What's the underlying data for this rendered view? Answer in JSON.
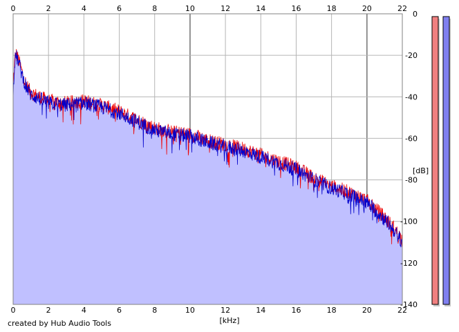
{
  "chart_data": {
    "type": "area",
    "title": "",
    "xlabel": "[kHz]",
    "ylabel": "[dB]",
    "xlim": [
      0,
      22
    ],
    "ylim": [
      -140,
      0
    ],
    "x_ticks": [
      "0",
      "2",
      "4",
      "6",
      "8",
      "10",
      "12",
      "14",
      "16",
      "18",
      "20",
      "22"
    ],
    "y_ticks": [
      "0",
      "-20",
      "-40",
      "-60",
      "-80",
      "-100",
      "-120",
      "-140"
    ],
    "grid": true,
    "x_tick_positions": "top-and-bottom",
    "y_tick_positions": "right",
    "colors": {
      "fill": "#c0c0ff",
      "channel_1_line": "#ee0000",
      "channel_2_line": "#0000cc",
      "grid": "#b4b4b4",
      "grid_major": "#7a7a7a",
      "level_meter_1": "#f08080",
      "level_meter_2": "#8080f0"
    },
    "series": [
      {
        "x": [
          0,
          0.05,
          0.1,
          0.15,
          0.2,
          0.3,
          0.4,
          0.6,
          0.8,
          1,
          1.5,
          2,
          3,
          4,
          5,
          6,
          7,
          8,
          9,
          10,
          11,
          12,
          13,
          14,
          15,
          16,
          17,
          18,
          19,
          20,
          20.5,
          21,
          21.5,
          22
        ],
        "values": [
          -36,
          -28,
          -22,
          -19,
          -20,
          -22,
          -25,
          -31,
          -35,
          -38,
          -40,
          -42,
          -43,
          -42,
          -44,
          -47,
          -51,
          -55,
          -57,
          -58,
          -61,
          -63,
          -65,
          -68,
          -71,
          -74,
          -79,
          -83,
          -86,
          -90,
          -94,
          -98,
          -103,
          -109
        ]
      },
      {
        "x": [
          0,
          0.05,
          0.1,
          0.15,
          0.2,
          0.3,
          0.4,
          0.6,
          0.8,
          1,
          1.5,
          2,
          3,
          4,
          5,
          6,
          7,
          8,
          9,
          10,
          11,
          12,
          13,
          14,
          15,
          16,
          17,
          18,
          19,
          20,
          20.5,
          21,
          21.5,
          22
        ],
        "values": [
          -38,
          -29,
          -23,
          -20,
          -21,
          -23,
          -26,
          -32,
          -36,
          -39,
          -41,
          -43,
          -44,
          -43,
          -45,
          -48,
          -52,
          -56,
          -58,
          -59,
          -62,
          -64,
          -66,
          -69,
          -72,
          -75,
          -80,
          -84,
          -87,
          -91,
          -95,
          -99,
          -104,
          -110
        ]
      }
    ],
    "level_meters": {
      "channel_1": 1,
      "channel_2": 1
    }
  },
  "footer": {
    "credit": "created by Hub Audio Tools"
  }
}
